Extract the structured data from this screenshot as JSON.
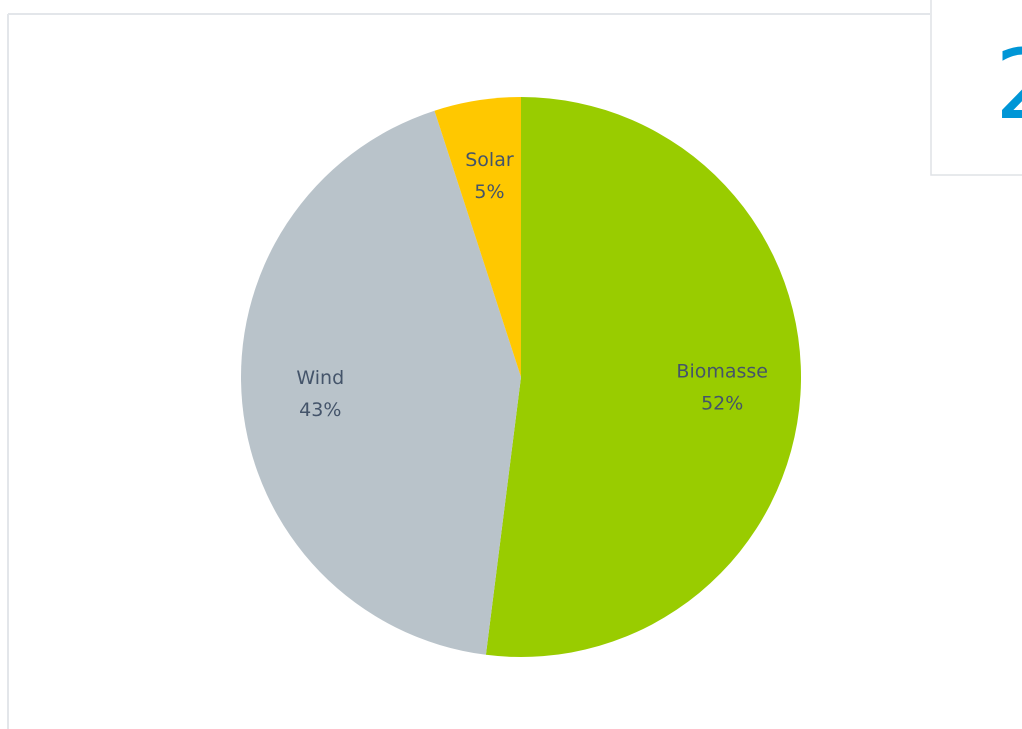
{
  "chart_data": {
    "type": "pie",
    "categories": [
      "Biomasse",
      "Wind",
      "Solar"
    ],
    "values": [
      52,
      43,
      5
    ],
    "value_labels": [
      "52%",
      "43%",
      "5%"
    ],
    "colors": [
      "#99cc00",
      "#b9c3ca",
      "#ffc800"
    ]
  },
  "card": {
    "value": "2"
  }
}
